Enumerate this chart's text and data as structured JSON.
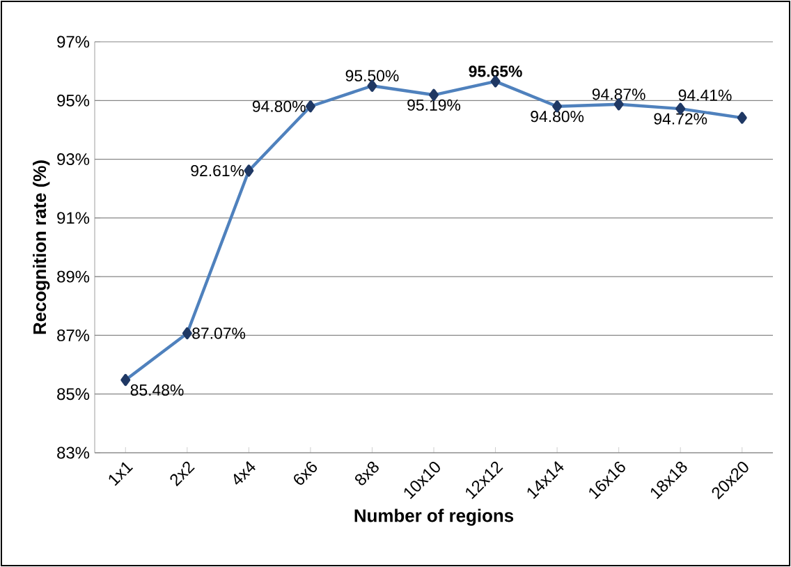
{
  "chart_data": {
    "type": "line",
    "xlabel": "Number of regions",
    "ylabel": "Recognition rate (%)",
    "categories": [
      "1x1",
      "2x2",
      "4x4",
      "6x6",
      "8x8",
      "10x10",
      "12x12",
      "14x14",
      "16x16",
      "18x18",
      "20x20"
    ],
    "series": [
      {
        "color": "#4f81bd",
        "values": [
          85.48,
          87.07,
          92.61,
          94.8,
          95.5,
          95.19,
          95.65,
          94.8,
          94.87,
          94.72,
          94.41
        ],
        "value_labels": [
          "85.48%",
          "87.07%",
          "92.61%",
          "94.80%",
          "95.50%",
          "95.19%",
          "**95.65%**",
          "94.80%",
          "94.87%",
          "94.72%",
          "94.41%"
        ]
      }
    ],
    "ylim": [
      83,
      97
    ],
    "yticks": [
      {
        "value": 83,
        "label": "83%"
      },
      {
        "value": 85,
        "label": "85%"
      },
      {
        "value": 87,
        "label": "87%"
      },
      {
        "value": 89,
        "label": "89%"
      },
      {
        "value": 91,
        "label": "91%"
      },
      {
        "value": 93,
        "label": "93%"
      },
      {
        "value": 95,
        "label": "95%"
      },
      {
        "value": 97,
        "label": "97%"
      }
    ],
    "grid": "y",
    "marker": "diamond",
    "line_style": "solid"
  }
}
